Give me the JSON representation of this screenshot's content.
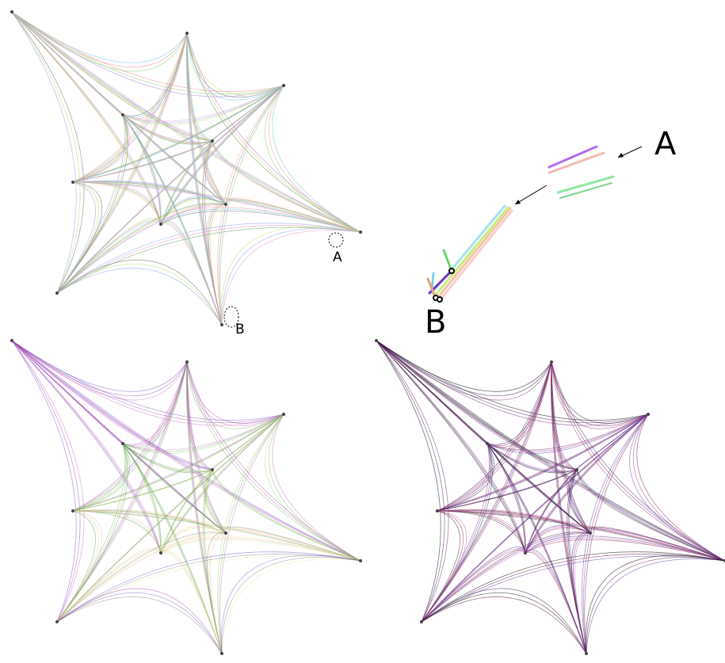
{
  "overview": {
    "label_a": "A",
    "label_b": "B"
  },
  "zoom": {
    "label_a": "A",
    "label_b": "B"
  }
}
